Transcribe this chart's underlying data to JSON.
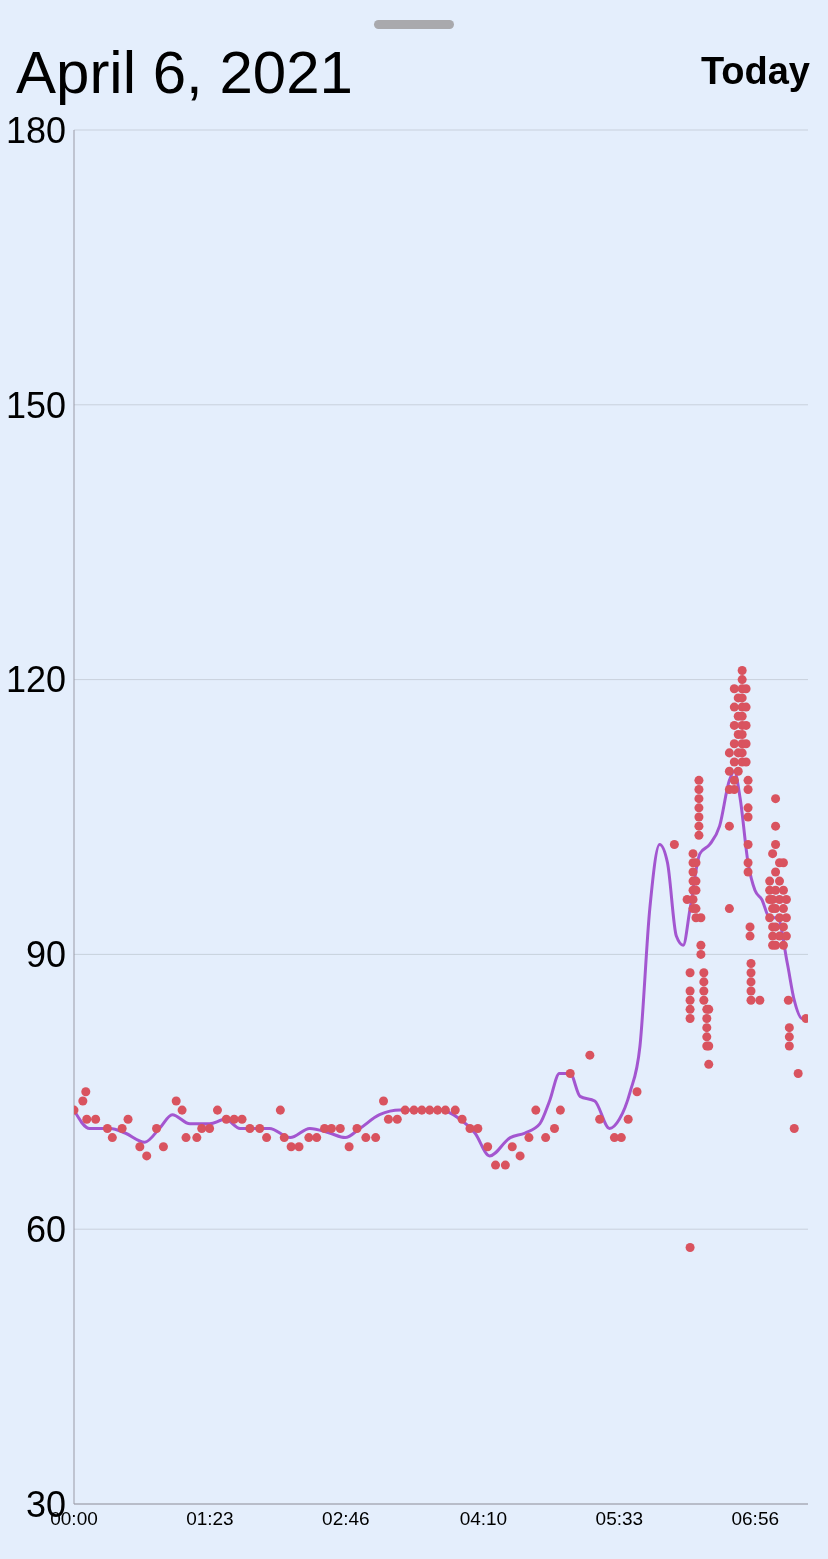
{
  "chart_data": {
    "type": "scatter",
    "title": "April 6, 2021",
    "annotations": [
      "Today"
    ],
    "xlim": [
      0,
      7.47
    ],
    "xticks": [
      {
        "value": 0,
        "label": "00:00"
      },
      {
        "value": 1.3833,
        "label": "01:23"
      },
      {
        "value": 2.7667,
        "label": "02:46"
      },
      {
        "value": 4.1667,
        "label": "04:10"
      },
      {
        "value": 5.55,
        "label": "05:33"
      },
      {
        "value": 6.9333,
        "label": "06:56"
      }
    ],
    "ylim": [
      30,
      180
    ],
    "yticks": [
      30,
      60,
      90,
      120,
      150,
      180
    ],
    "grid": "y",
    "series": [
      {
        "marker": "circle",
        "color": "#d9535f",
        "x": [
          0,
          0.09,
          0.12,
          0.13,
          0.22,
          0.34,
          0.39,
          0.49,
          0.55,
          0.67,
          0.74,
          0.84,
          0.91,
          1.04,
          1.1,
          1.14,
          1.25,
          1.3,
          1.38,
          1.46,
          1.55,
          1.63,
          1.71,
          1.79,
          1.89,
          1.96,
          2.1,
          2.14,
          2.21,
          2.29,
          2.39,
          2.47,
          2.55,
          2.62,
          2.71,
          2.8,
          2.88,
          2.97,
          3.07,
          3.15,
          3.2,
          3.29,
          3.37,
          3.46,
          3.54,
          3.62,
          3.7,
          3.78,
          3.88,
          3.95,
          4.03,
          4.11,
          4.21,
          4.29,
          4.39,
          4.46,
          4.54,
          4.63,
          4.7,
          4.8,
          4.89,
          4.95,
          5.05,
          5.25,
          5.35,
          5.5,
          5.57,
          5.64,
          5.73,
          6.11,
          6.24,
          6.27,
          6.27,
          6.27,
          6.27,
          6.27,
          6.27,
          6.3,
          6.3,
          6.3,
          6.3,
          6.3,
          6.3,
          6.3,
          6.33,
          6.33,
          6.33,
          6.33,
          6.33,
          6.36,
          6.36,
          6.36,
          6.36,
          6.36,
          6.36,
          6.36,
          6.38,
          6.38,
          6.38,
          6.41,
          6.41,
          6.41,
          6.41,
          6.44,
          6.44,
          6.44,
          6.44,
          6.44,
          6.46,
          6.46,
          6.46,
          6.67,
          6.67,
          6.67,
          6.67,
          6.67,
          6.72,
          6.72,
          6.72,
          6.72,
          6.72,
          6.72,
          6.72,
          6.76,
          6.76,
          6.76,
          6.76,
          6.76,
          6.8,
          6.8,
          6.8,
          6.8,
          6.8,
          6.8,
          6.8,
          6.8,
          6.8,
          6.8,
          6.8,
          6.84,
          6.84,
          6.84,
          6.84,
          6.84,
          6.86,
          6.86,
          6.86,
          6.86,
          6.86,
          6.86,
          6.86,
          6.88,
          6.88,
          6.89,
          6.89,
          6.89,
          6.89,
          6.89,
          6.98,
          7.08,
          7.08,
          7.08,
          7.08,
          7.11,
          7.11,
          7.11,
          7.11,
          7.11,
          7.11,
          7.14,
          7.14,
          7.14,
          7.14,
          7.14,
          7.14,
          7.14,
          7.14,
          7.18,
          7.18,
          7.18,
          7.18,
          7.18,
          7.22,
          7.22,
          7.22,
          7.22,
          7.22,
          7.25,
          7.25,
          7.25,
          7.27,
          7.28,
          7.28,
          7.28,
          7.33,
          7.37,
          7.45
        ],
        "values": [
          73,
          74,
          75,
          72,
          72,
          71,
          70,
          71,
          72,
          69,
          68,
          71,
          69,
          74,
          73,
          70,
          70,
          71,
          71,
          73,
          72,
          72,
          72,
          71,
          71,
          70,
          73,
          70,
          69,
          69,
          70,
          70,
          71,
          71,
          71,
          69,
          71,
          70,
          70,
          74,
          72,
          72,
          73,
          73,
          73,
          73,
          73,
          73,
          73,
          72,
          71,
          71,
          69,
          67,
          67,
          69,
          68,
          70,
          73,
          70,
          71,
          73,
          77,
          79,
          72,
          70,
          70,
          72,
          75,
          102,
          96,
          88,
          86,
          85,
          84,
          83,
          58,
          101,
          100,
          99,
          98,
          97,
          96,
          95,
          100,
          98,
          97,
          95,
          94,
          109,
          108,
          107,
          106,
          105,
          104,
          103,
          94,
          91,
          90,
          88,
          87,
          86,
          85,
          84,
          83,
          82,
          81,
          80,
          84,
          80,
          78,
          104,
          95,
          112,
          110,
          108,
          119,
          117,
          115,
          113,
          111,
          109,
          108,
          118,
          116,
          114,
          112,
          110,
          121,
          120,
          119,
          118,
          117,
          116,
          115,
          114,
          113,
          112,
          111,
          119,
          117,
          115,
          113,
          111,
          109,
          108,
          106,
          105,
          102,
          100,
          99,
          93,
          92,
          89,
          88,
          87,
          86,
          85,
          85,
          94,
          97,
          98,
          96,
          101,
          96,
          95,
          93,
          92,
          91,
          107,
          104,
          102,
          99,
          97,
          95,
          93,
          91,
          100,
          98,
          96,
          94,
          92,
          100,
          97,
          95,
          93,
          91,
          96,
          94,
          92,
          85,
          82,
          81,
          80,
          71,
          77,
          83
        ]
      },
      {
        "type": "line",
        "marker": "none",
        "color": "#a356d0",
        "x": [
          0,
          0.16,
          0.37,
          0.52,
          0.72,
          0.87,
          1,
          1.18,
          1.38,
          1.54,
          1.69,
          1.99,
          2.2,
          2.4,
          2.6,
          2.76,
          2.91,
          3.11,
          3.32,
          3.72,
          3.93,
          4.08,
          4.23,
          4.44,
          4.59,
          4.74,
          4.84,
          4.94,
          5.05,
          5.15,
          5.3,
          5.45,
          5.55,
          5.66,
          5.76,
          5.86,
          5.96,
          6.04,
          6.13,
          6.2,
          6.27,
          6.37,
          6.47,
          6.57,
          6.67,
          6.72,
          6.78,
          6.86,
          6.93,
          7,
          7.08,
          7.16,
          7.26,
          7.33,
          7.41,
          7.47
        ],
        "values": [
          73,
          71,
          71,
          70.5,
          69.5,
          71,
          72.5,
          71.5,
          71.5,
          72,
          71,
          71,
          70,
          71,
          70.5,
          70,
          71,
          72.5,
          73,
          73,
          72,
          70.5,
          68,
          70,
          70.5,
          71.5,
          74,
          77,
          77,
          74.5,
          74,
          71,
          72,
          75,
          80,
          95,
          102,
          100,
          92,
          91,
          95,
          101,
          102,
          104,
          109,
          110,
          107,
          100,
          97,
          96,
          94,
          94,
          89,
          85,
          83,
          83
        ]
      }
    ]
  }
}
